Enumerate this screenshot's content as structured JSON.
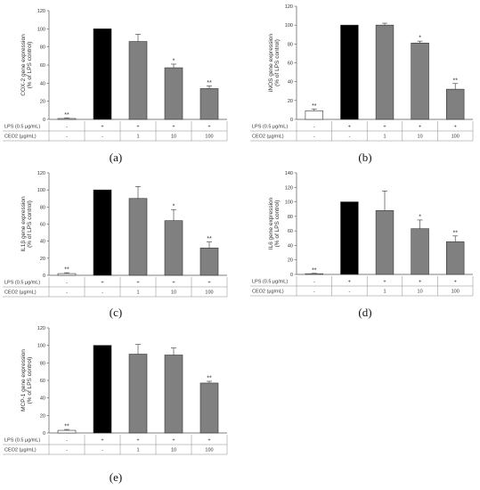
{
  "chart_data": [
    {
      "type": "bar",
      "panel": "(a)",
      "ylabel": [
        "COX-2 gene expression",
        "(% of LPS control)"
      ],
      "ylim": [
        0,
        120
      ],
      "yticks": [
        0,
        20,
        40,
        60,
        80,
        100,
        120
      ],
      "values": [
        1,
        100,
        86,
        57,
        34
      ],
      "errors": [
        0.5,
        0,
        8,
        4,
        3
      ],
      "significance": [
        "**",
        "",
        "",
        "*",
        "**"
      ],
      "bar_colors": [
        "#ffffff",
        "#000000",
        "#808080",
        "#808080",
        "#808080"
      ],
      "rows": [
        {
          "label": "LPS (0.5 µg/mL)",
          "cells": [
            "-",
            "+",
            "+",
            "+",
            "+"
          ]
        },
        {
          "label": "CEO2 (µg/mL)",
          "cells": [
            "-",
            "-",
            "1",
            "10",
            "100"
          ]
        }
      ]
    },
    {
      "type": "bar",
      "panel": "(b)",
      "ylabel": [
        "iNOS gene expression",
        "(% of LPS control)"
      ],
      "ylim": [
        0,
        120
      ],
      "yticks": [
        0,
        20,
        40,
        60,
        80,
        100,
        120
      ],
      "values": [
        9,
        100,
        100,
        81,
        32
      ],
      "errors": [
        2,
        0,
        2,
        2,
        6
      ],
      "significance": [
        "**",
        "",
        "",
        "*",
        "**"
      ],
      "bar_colors": [
        "#ffffff",
        "#000000",
        "#808080",
        "#808080",
        "#808080"
      ],
      "rows": [
        {
          "label": "LPS (0.5 µg/mL)",
          "cells": [
            "-",
            "+",
            "+",
            "+",
            "+"
          ]
        },
        {
          "label": "CEO2 (µg/mL)",
          "cells": [
            "-",
            "-",
            "1",
            "10",
            "100"
          ]
        }
      ]
    },
    {
      "type": "bar",
      "panel": "(c)",
      "ylabel": [
        "IL1β gene expression",
        "(% of LPS control)"
      ],
      "ylim": [
        0,
        120
      ],
      "yticks": [
        0,
        20,
        40,
        60,
        80,
        100,
        120
      ],
      "values": [
        2,
        100,
        90,
        64,
        32
      ],
      "errors": [
        1,
        0,
        14,
        13,
        7
      ],
      "significance": [
        "**",
        "",
        "",
        "*",
        "**"
      ],
      "bar_colors": [
        "#ffffff",
        "#000000",
        "#808080",
        "#808080",
        "#808080"
      ],
      "rows": [
        {
          "label": "LPS (0.5 µg/mL)",
          "cells": [
            "-",
            "+",
            "+",
            "+",
            "+"
          ]
        },
        {
          "label": "CEO2 (µg/mL)",
          "cells": [
            "-",
            "-",
            "1",
            "10",
            "100"
          ]
        }
      ]
    },
    {
      "type": "bar",
      "panel": "(d)",
      "ylabel": [
        "IL6 gene expression",
        "(% of LPS control)"
      ],
      "ylim": [
        0,
        140
      ],
      "yticks": [
        0,
        20,
        40,
        60,
        80,
        100,
        120,
        140
      ],
      "values": [
        1,
        100,
        88,
        63,
        45
      ],
      "errors": [
        0.5,
        0,
        27,
        12,
        8
      ],
      "significance": [
        "**",
        "",
        "",
        "*",
        "**"
      ],
      "bar_colors": [
        "#ffffff",
        "#000000",
        "#808080",
        "#808080",
        "#808080"
      ],
      "rows": [
        {
          "label": "LPS (0.5 µg/mL)",
          "cells": [
            "-",
            "+",
            "+",
            "+",
            "+"
          ]
        },
        {
          "label": "CEO2 (µg/mL)",
          "cells": [
            "-",
            "-",
            "1",
            "10",
            "100"
          ]
        }
      ]
    },
    {
      "type": "bar",
      "panel": "(e)",
      "ylabel": [
        "MCP-1 gene expression",
        "(% of LPS control)"
      ],
      "ylim": [
        0,
        120
      ],
      "yticks": [
        0,
        20,
        40,
        60,
        80,
        100,
        120
      ],
      "values": [
        3,
        100,
        90,
        89,
        57
      ],
      "errors": [
        1,
        0,
        11,
        8,
        2
      ],
      "significance": [
        "**",
        "",
        "",
        "",
        "**"
      ],
      "bar_colors": [
        "#ffffff",
        "#000000",
        "#808080",
        "#808080",
        "#808080"
      ],
      "rows": [
        {
          "label": "LPS (0.5 µg/mL)",
          "cells": [
            "-",
            "+",
            "+",
            "+",
            "+"
          ]
        },
        {
          "label": "CEO2 (µg/mL)",
          "cells": [
            "-",
            "-",
            "1",
            "10",
            "100"
          ]
        }
      ]
    }
  ]
}
